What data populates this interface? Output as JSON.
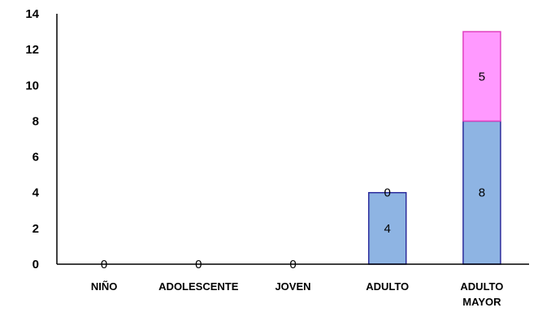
{
  "chart_data": {
    "type": "bar",
    "stacked": true,
    "categories": [
      [
        "NIÑO"
      ],
      [
        "ADOLESCENTE"
      ],
      [
        "JOVEN"
      ],
      [
        "ADULTO"
      ],
      [
        "ADULTO",
        "MAYOR"
      ]
    ],
    "series": [
      {
        "values": [
          0,
          0,
          0,
          4,
          8
        ],
        "color": "#8eb4e3",
        "edge": "#2b2b9c"
      },
      {
        "values": [
          0,
          0,
          0,
          0,
          5
        ],
        "color": "#ff99ff",
        "edge": "#e040c0"
      }
    ],
    "ylim": [
      0,
      14
    ],
    "yticks": [
      0,
      2,
      4,
      6,
      8,
      10,
      12,
      14
    ],
    "grid": false,
    "legend": "none",
    "title": "",
    "xlabel": "",
    "ylabel": ""
  }
}
